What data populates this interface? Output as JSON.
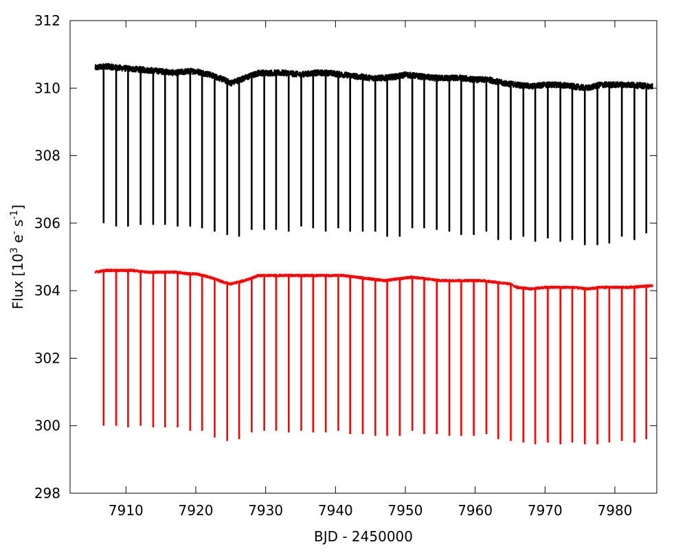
{
  "chart_data": {
    "type": "line",
    "title": "",
    "xlabel": "BJD - 2450000",
    "ylabel": {
      "prefix": "Flux [10",
      "sup1": "3",
      "mid1": " e",
      "sup2": "-",
      "mid2": " s",
      "sup3": "-1",
      "suffix": "]"
    },
    "xlim": [
      7902,
      7986
    ],
    "ylim": [
      298,
      312
    ],
    "xticks": [
      7910,
      7920,
      7930,
      7940,
      7950,
      7960,
      7970,
      7980
    ],
    "yticks": [
      298,
      300,
      302,
      304,
      306,
      308,
      310,
      312
    ],
    "grid": false,
    "legend": "none",
    "series": [
      {
        "color": "#000000",
        "x_range": [
          7905.6,
          7985.4
        ],
        "baseline": [
          [
            7905.6,
            310.6
          ],
          [
            7907,
            310.65
          ],
          [
            7909,
            310.6
          ],
          [
            7912,
            310.55
          ],
          [
            7915,
            310.5
          ],
          [
            7917,
            310.45
          ],
          [
            7919,
            310.5
          ],
          [
            7920,
            310.5
          ],
          [
            7922,
            310.4
          ],
          [
            7924,
            310.25
          ],
          [
            7925,
            310.15
          ],
          [
            7927,
            310.3
          ],
          [
            7929,
            310.45
          ],
          [
            7931,
            310.45
          ],
          [
            7933,
            310.45
          ],
          [
            7935,
            310.4
          ],
          [
            7937,
            310.45
          ],
          [
            7939,
            310.45
          ],
          [
            7941,
            310.4
          ],
          [
            7943,
            310.35
          ],
          [
            7945,
            310.3
          ],
          [
            7947,
            310.3
          ],
          [
            7949,
            310.35
          ],
          [
            7950,
            310.4
          ],
          [
            7952,
            310.35
          ],
          [
            7954,
            310.3
          ],
          [
            7956,
            310.3
          ],
          [
            7958,
            310.3
          ],
          [
            7960,
            310.25
          ],
          [
            7962,
            310.25
          ],
          [
            7964,
            310.15
          ],
          [
            7966,
            310.1
          ],
          [
            7968,
            310.05
          ],
          [
            7970,
            310.1
          ],
          [
            7972,
            310.1
          ],
          [
            7974,
            310.05
          ],
          [
            7976,
            310.0
          ],
          [
            7978,
            310.1
          ],
          [
            7980,
            310.1
          ],
          [
            7982,
            310.1
          ],
          [
            7985.4,
            310.05
          ]
        ],
        "transits": [
          [
            7906.8,
            306.0
          ],
          [
            7908.6,
            305.9
          ],
          [
            7910.3,
            305.9
          ],
          [
            7912.1,
            305.95
          ],
          [
            7913.9,
            305.95
          ],
          [
            7915.6,
            305.95
          ],
          [
            7917.4,
            305.9
          ],
          [
            7919.2,
            305.9
          ],
          [
            7920.9,
            305.85
          ],
          [
            7922.7,
            305.75
          ],
          [
            7924.5,
            305.65
          ],
          [
            7926.2,
            305.6
          ],
          [
            7928.0,
            305.8
          ],
          [
            7929.8,
            305.8
          ],
          [
            7931.5,
            305.8
          ],
          [
            7933.3,
            305.75
          ],
          [
            7935.1,
            305.9
          ],
          [
            7936.8,
            305.85
          ],
          [
            7938.6,
            305.75
          ],
          [
            7940.4,
            305.85
          ],
          [
            7942.1,
            305.75
          ],
          [
            7943.9,
            305.75
          ],
          [
            7945.7,
            305.75
          ],
          [
            7947.4,
            305.6
          ],
          [
            7949.2,
            305.6
          ],
          [
            7951.0,
            305.85
          ],
          [
            7952.7,
            305.85
          ],
          [
            7954.5,
            305.8
          ],
          [
            7956.3,
            305.75
          ],
          [
            7958.0,
            305.65
          ],
          [
            7959.8,
            305.65
          ],
          [
            7961.6,
            305.75
          ],
          [
            7963.3,
            305.5
          ],
          [
            7965.1,
            305.5
          ],
          [
            7966.9,
            305.6
          ],
          [
            7968.6,
            305.45
          ],
          [
            7970.4,
            305.55
          ],
          [
            7972.2,
            305.45
          ],
          [
            7973.9,
            305.5
          ],
          [
            7975.7,
            305.35
          ],
          [
            7977.5,
            305.35
          ],
          [
            7979.2,
            305.4
          ],
          [
            7981.0,
            305.6
          ],
          [
            7982.8,
            305.5
          ],
          [
            7984.5,
            305.7
          ]
        ]
      },
      {
        "color": "#ff0000",
        "x_range": [
          7905.6,
          7985.4
        ],
        "baseline": [
          [
            7905.6,
            304.55
          ],
          [
            7907,
            304.6
          ],
          [
            7909,
            304.6
          ],
          [
            7911,
            304.6
          ],
          [
            7913,
            304.55
          ],
          [
            7915,
            304.55
          ],
          [
            7917,
            304.55
          ],
          [
            7919,
            304.5
          ],
          [
            7920,
            304.5
          ],
          [
            7922,
            304.4
          ],
          [
            7924,
            304.25
          ],
          [
            7925,
            304.2
          ],
          [
            7927,
            304.3
          ],
          [
            7929,
            304.45
          ],
          [
            7931,
            304.45
          ],
          [
            7933,
            304.45
          ],
          [
            7935,
            304.45
          ],
          [
            7937,
            304.45
          ],
          [
            7939,
            304.45
          ],
          [
            7941,
            304.45
          ],
          [
            7943,
            304.4
          ],
          [
            7945,
            304.35
          ],
          [
            7947,
            304.3
          ],
          [
            7949,
            304.35
          ],
          [
            7951,
            304.4
          ],
          [
            7953,
            304.35
          ],
          [
            7955,
            304.3
          ],
          [
            7957,
            304.3
          ],
          [
            7959,
            304.3
          ],
          [
            7961,
            304.3
          ],
          [
            7963,
            304.25
          ],
          [
            7965,
            304.2
          ],
          [
            7966,
            304.1
          ],
          [
            7968,
            304.05
          ],
          [
            7970,
            304.1
          ],
          [
            7972,
            304.1
          ],
          [
            7974,
            304.1
          ],
          [
            7976,
            304.05
          ],
          [
            7978,
            304.1
          ],
          [
            7980,
            304.1
          ],
          [
            7982,
            304.1
          ],
          [
            7985.4,
            304.15
          ]
        ],
        "transits": [
          [
            7906.8,
            300.0
          ],
          [
            7908.6,
            300.0
          ],
          [
            7910.3,
            299.95
          ],
          [
            7912.1,
            300.0
          ],
          [
            7913.9,
            299.95
          ],
          [
            7915.6,
            299.95
          ],
          [
            7917.4,
            299.95
          ],
          [
            7919.2,
            299.85
          ],
          [
            7920.9,
            299.85
          ],
          [
            7922.7,
            299.65
          ],
          [
            7924.5,
            299.55
          ],
          [
            7926.2,
            299.6
          ],
          [
            7928.0,
            299.8
          ],
          [
            7929.8,
            299.85
          ],
          [
            7931.5,
            299.85
          ],
          [
            7933.3,
            299.8
          ],
          [
            7935.1,
            299.85
          ],
          [
            7936.8,
            299.8
          ],
          [
            7938.6,
            299.8
          ],
          [
            7940.4,
            299.85
          ],
          [
            7942.1,
            299.75
          ],
          [
            7943.9,
            299.75
          ],
          [
            7945.7,
            299.7
          ],
          [
            7947.4,
            299.7
          ],
          [
            7949.2,
            299.7
          ],
          [
            7951.0,
            299.85
          ],
          [
            7952.7,
            299.75
          ],
          [
            7954.5,
            299.75
          ],
          [
            7956.3,
            299.7
          ],
          [
            7958.0,
            299.7
          ],
          [
            7959.8,
            299.7
          ],
          [
            7961.6,
            299.75
          ],
          [
            7963.3,
            299.6
          ],
          [
            7965.1,
            299.55
          ],
          [
            7966.9,
            299.5
          ],
          [
            7968.6,
            299.45
          ],
          [
            7970.4,
            299.5
          ],
          [
            7972.2,
            299.45
          ],
          [
            7973.9,
            299.5
          ],
          [
            7975.7,
            299.45
          ],
          [
            7977.5,
            299.45
          ],
          [
            7979.2,
            299.5
          ],
          [
            7981.0,
            299.55
          ],
          [
            7982.8,
            299.5
          ],
          [
            7984.5,
            299.6
          ]
        ]
      }
    ]
  }
}
